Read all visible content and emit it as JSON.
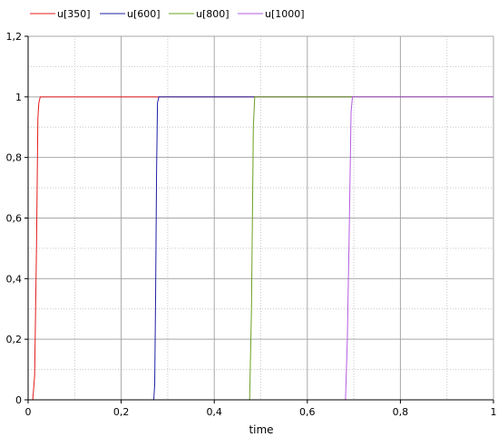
{
  "chart_data": {
    "type": "line",
    "title": "",
    "xlabel": "time",
    "ylabel": "",
    "xlim": [
      0,
      1
    ],
    "ylim": [
      0,
      1.2
    ],
    "x_ticks": [
      0,
      0.2,
      0.4,
      0.6,
      0.8,
      1
    ],
    "x_tick_labels": [
      "0",
      "0,2",
      "0,4",
      "0,6",
      "0,8",
      "1"
    ],
    "y_ticks": [
      0,
      0.2,
      0.4,
      0.6,
      0.8,
      1,
      1.2
    ],
    "y_tick_labels": [
      "0",
      "0,2",
      "0,4",
      "0,6",
      "0,8",
      "1",
      "1,2"
    ],
    "grid": true,
    "legend_position": "top",
    "series": [
      {
        "name": "u[350]",
        "color": "#e41a1c",
        "x": [
          0,
          0.01,
          0.014,
          0.018,
          0.021,
          0.023,
          0.026,
          1
        ],
        "y": [
          0,
          0,
          0.08,
          0.5,
          0.93,
          0.98,
          1,
          1
        ]
      },
      {
        "name": "u[600]",
        "color": "#1f1fa6",
        "x": [
          0,
          0.27,
          0.272,
          0.274,
          0.276,
          0.278,
          0.281,
          1
        ],
        "y": [
          0,
          0,
          0.05,
          0.35,
          0.75,
          0.98,
          1,
          1
        ]
      },
      {
        "name": "u[800]",
        "color": "#6aa121",
        "x": [
          0,
          0.476,
          0.48,
          0.482,
          0.484,
          0.487,
          1
        ],
        "y": [
          0,
          0,
          0.3,
          0.6,
          0.9,
          1,
          1
        ]
      },
      {
        "name": "u[1000]",
        "color": "#b45ce0",
        "x": [
          0,
          0.682,
          0.686,
          0.69,
          0.694,
          0.697,
          1
        ],
        "y": [
          0,
          0,
          0.2,
          0.55,
          0.95,
          1,
          1
        ]
      }
    ]
  }
}
